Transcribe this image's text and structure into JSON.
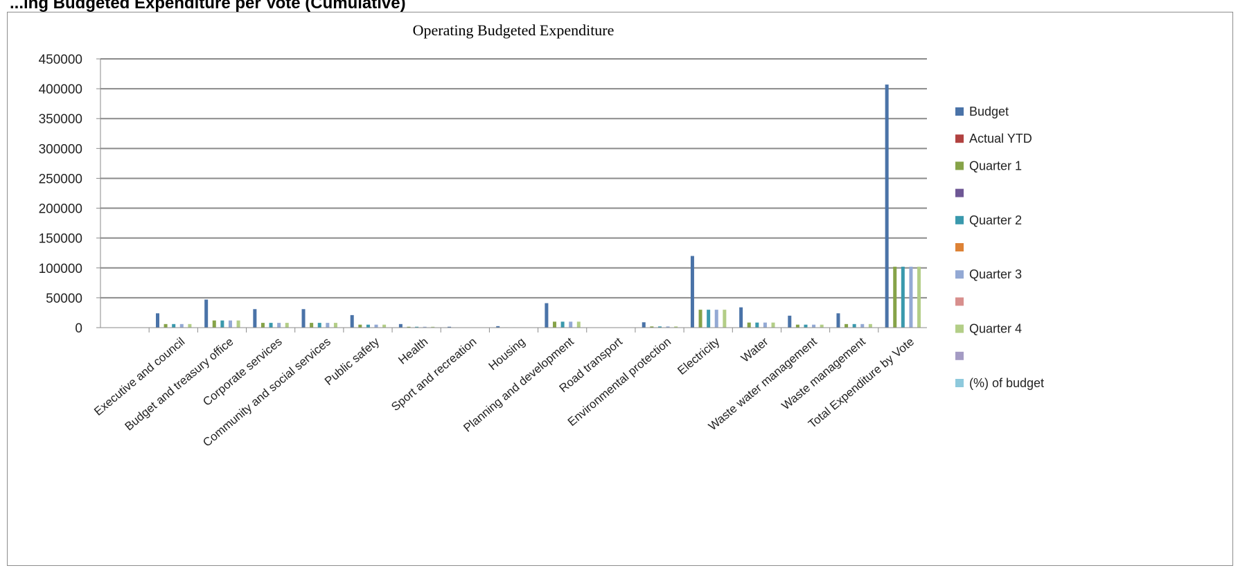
{
  "page": {
    "heading": "...ing Budgeted Expenditure per Vote (Cumulative)"
  },
  "colors": {
    "Budget": "#4a73a8",
    "Actual YTD": "#b14240",
    "Quarter 1": "#86a348",
    "Series 4": "#6e5795",
    "Quarter 2": "#3a99ad",
    "Series 6": "#dd8236",
    "Quarter 3": "#93a9d4",
    "Series 8": "#d88f8d",
    "Quarter 4": "#b3ce87",
    "Series 10": "#a49bc4",
    "(%) of budget": "#8ec9dc"
  },
  "chart_data": {
    "type": "bar",
    "title": "Operating Budgeted Expenditure",
    "xlabel": "",
    "ylabel": "",
    "ylim": [
      0,
      450000
    ],
    "yticks": [
      0,
      50000,
      100000,
      150000,
      200000,
      250000,
      300000,
      350000,
      400000,
      450000
    ],
    "grid": true,
    "legend_position": "right",
    "categories": [
      "",
      "Executive and council",
      "Budget and treasury office",
      "Corporate services",
      "Community and social services",
      "Public safety",
      "Health",
      "Sport and recreation",
      "Housing",
      "Planning and development",
      "Road transport",
      "Environmental protection",
      "Electricity",
      "Water",
      "Waste water management",
      "Waste management",
      "Total Expenditure by Vote"
    ],
    "series": [
      {
        "name": "Budget",
        "values": [
          0,
          24000,
          47000,
          31000,
          31000,
          21000,
          6000,
          1500,
          2500,
          41000,
          500,
          9000,
          120000,
          34000,
          20000,
          24000,
          407000
        ]
      },
      {
        "name": "Actual YTD",
        "values": [
          0,
          0,
          0,
          0,
          0,
          0,
          0,
          0,
          0,
          0,
          0,
          0,
          0,
          0,
          0,
          0,
          0
        ]
      },
      {
        "name": "Quarter 1",
        "values": [
          0,
          6000,
          12000,
          8000,
          8000,
          5000,
          1500,
          500,
          600,
          10000,
          100,
          2000,
          30000,
          8500,
          5000,
          6000,
          102000
        ]
      },
      {
        "name": "",
        "values": [
          0,
          0,
          0,
          0,
          0,
          0,
          0,
          0,
          0,
          0,
          0,
          0,
          0,
          0,
          0,
          0,
          0
        ]
      },
      {
        "name": "Quarter 2",
        "values": [
          0,
          6000,
          12000,
          8000,
          8000,
          5000,
          1500,
          500,
          600,
          10000,
          100,
          2000,
          30000,
          8500,
          5000,
          6000,
          102000
        ]
      },
      {
        "name": "",
        "values": [
          0,
          0,
          0,
          0,
          0,
          0,
          0,
          0,
          0,
          0,
          0,
          0,
          0,
          0,
          0,
          0,
          0
        ]
      },
      {
        "name": "Quarter 3",
        "values": [
          0,
          6000,
          12000,
          8000,
          8000,
          5000,
          1500,
          500,
          600,
          10000,
          100,
          2000,
          30000,
          8500,
          5000,
          6000,
          102000
        ]
      },
      {
        "name": "",
        "values": [
          0,
          0,
          0,
          0,
          0,
          0,
          0,
          0,
          0,
          0,
          0,
          0,
          0,
          0,
          0,
          0,
          0
        ]
      },
      {
        "name": "Quarter 4",
        "values": [
          0,
          6000,
          12000,
          8000,
          8000,
          5000,
          1500,
          500,
          600,
          10000,
          100,
          2000,
          30000,
          8500,
          5000,
          6000,
          102000
        ]
      },
      {
        "name": "",
        "values": [
          0,
          0,
          0,
          0,
          0,
          0,
          0,
          0,
          0,
          0,
          0,
          0,
          0,
          0,
          0,
          0,
          0
        ]
      },
      {
        "name": "(%) of budget",
        "values": [
          0,
          0,
          0,
          0,
          0,
          0,
          0,
          0,
          0,
          0,
          0,
          0,
          0,
          0,
          0,
          0,
          0
        ]
      }
    ]
  }
}
